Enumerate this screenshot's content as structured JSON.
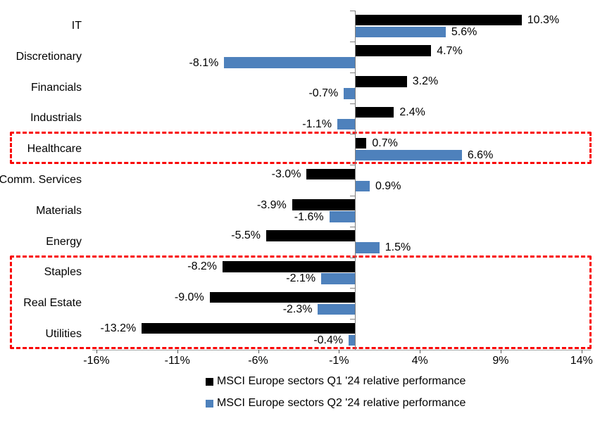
{
  "chart_data": {
    "type": "bar",
    "orientation": "horizontal",
    "title": "",
    "categories": [
      "IT",
      "Discretionary",
      "Financials",
      "Industrials",
      "Healthcare",
      "Comm. Services",
      "Materials",
      "Energy",
      "Staples",
      "Real Estate",
      "Utilities"
    ],
    "series": [
      {
        "name": "MSCI Europe sectors Q1 '24 relative performance",
        "color": "#000000",
        "values": [
          10.3,
          4.7,
          3.2,
          2.4,
          0.7,
          -3.0,
          -3.9,
          -5.5,
          -8.2,
          -9.0,
          -13.2
        ],
        "labels": [
          "10.3%",
          "4.7%",
          "3.2%",
          "2.4%",
          "0.7%",
          "-3.0%",
          "-3.9%",
          "-5.5%",
          "-8.2%",
          "-9.0%",
          "-13.2%"
        ]
      },
      {
        "name": "MSCI Europe sectors Q2 '24 relative performance",
        "color": "#4e81bc",
        "values": [
          5.6,
          -8.1,
          -0.7,
          -1.1,
          6.6,
          0.9,
          -1.6,
          1.5,
          -2.1,
          -2.3,
          -0.4
        ],
        "labels": [
          "5.6%",
          "-8.1%",
          "-0.7%",
          "-1.1%",
          "6.6%",
          "0.9%",
          "-1.6%",
          "1.5%",
          "-2.1%",
          "-2.3%",
          "-0.4%"
        ]
      }
    ],
    "x_axis": {
      "ticks": [
        "-16%",
        "-11%",
        "-6%",
        "-1%",
        "4%",
        "9%",
        "14%"
      ],
      "tick_values": [
        -16,
        -11,
        -6,
        -1,
        4,
        9,
        14
      ],
      "min": -16.25,
      "max": 14.6,
      "grid": false
    },
    "legend_position": "bottom",
    "highlight_color": "#f90606",
    "highlights": [
      {
        "label": "highlight-box-healthcare",
        "categories": [
          "Healthcare"
        ]
      },
      {
        "label": "highlight-box-defensives",
        "categories": [
          "Staples",
          "Real Estate",
          "Utilities"
        ]
      }
    ]
  }
}
